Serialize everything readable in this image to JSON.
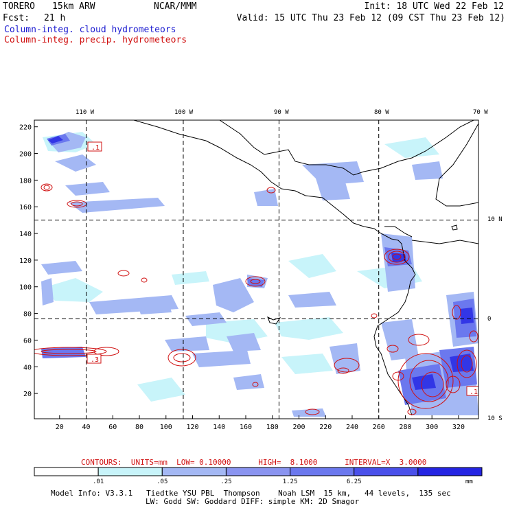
{
  "header": {
    "model": "TORERO",
    "resolution": "15km ARW",
    "center": "NCAR/MMM",
    "init": "Init: 18 UTC Wed 22 Feb 12",
    "fcst_label": "Fcst:",
    "fcst_value": "21 h",
    "valid": "Valid: 15 UTC Thu 23 Feb 12 (09 CST Thu 23 Feb 12)",
    "field_cloud": "Column-integ. cloud hydrometeors",
    "field_precip": "Column-integ. precip. hydrometeors"
  },
  "map": {
    "lon_labels": [
      "110 W",
      "100 W",
      "90 W",
      "80 W",
      "70 W"
    ],
    "lat_labels": [
      "10 N",
      "0",
      "10 S"
    ],
    "x_ticks": [
      "20",
      "40",
      "60",
      "80",
      "100",
      "120",
      "140",
      "160",
      "180",
      "200",
      "220",
      "240",
      "260",
      "280",
      "300",
      "320"
    ],
    "y_ticks": [
      "20",
      "40",
      "60",
      "80",
      "100",
      "120",
      "140",
      "160",
      "180",
      "200",
      "220"
    ],
    "grid_x_values": [
      40,
      113,
      185,
      260
    ],
    "grid_y_values": [
      76,
      150
    ],
    "x_range": [
      1,
      335
    ],
    "y_range": [
      1,
      225
    ],
    "contour_labels": [
      ".1",
      ".3",
      ".1"
    ],
    "colors": {
      "cloud_light": "#c8f4fa",
      "cloud_mid": "#a4b8f4",
      "cloud_dark": "#6b78ee",
      "cloud_deep": "#3236e6",
      "precip_contour": "#d01010",
      "coast": "#000000"
    }
  },
  "legend": {
    "contours_text": "CONTOURS:  UNITS=mm  LOW= 0.10000      HIGH=  8.1000      INTERVAL=X  3.0000",
    "bin_labels": [
      ".01",
      ".05",
      ".25",
      "1.25",
      "6.25"
    ],
    "unit": "mm",
    "bin_colors": [
      "#ffffff",
      "#c8f4fa",
      "#a4b8f4",
      "#8a94f0",
      "#6b78ee",
      "#4a50ea",
      "#2424e2"
    ]
  },
  "footer": {
    "line1": "Model Info: V3.3.1   Tiedtke YSU PBL  Thompson    Noah LSM  15 km,   44 levels,  135 sec",
    "line2": "LW: Godd SW: Goddard DIFF: simple KM: 2D Smagor"
  }
}
